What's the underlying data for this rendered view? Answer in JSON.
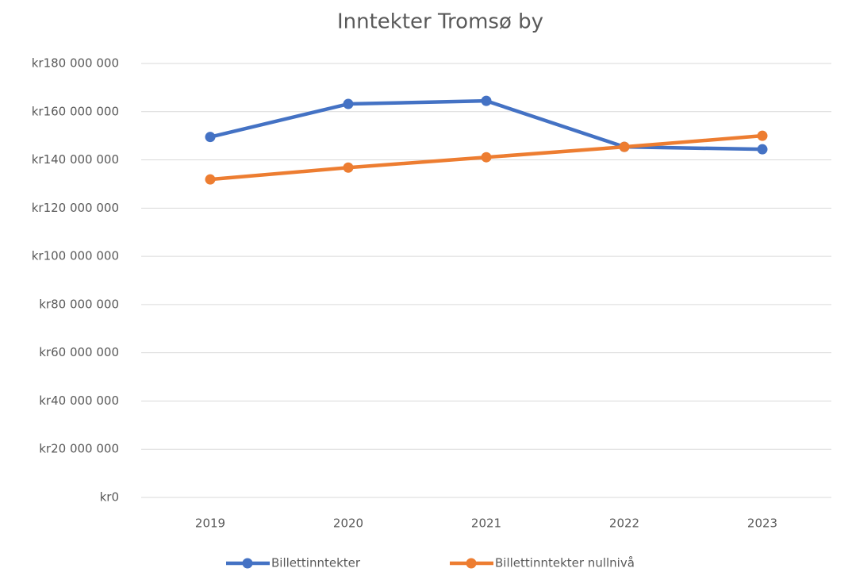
{
  "chart_data": {
    "type": "line",
    "title": "Inntekter Tromsø by",
    "categories": [
      "2019",
      "2020",
      "2021",
      "2022",
      "2023"
    ],
    "series": [
      {
        "name": "Billettinntekter",
        "color": "#4472c4",
        "values": [
          149500000,
          163200000,
          164500000,
          145400000,
          144400000
        ]
      },
      {
        "name": "Billettinntekter nullnivå",
        "color": "#ed7d31",
        "values": [
          131900000,
          136800000,
          141100000,
          145400000,
          150000000
        ]
      }
    ],
    "ylim": [
      0,
      180000000
    ],
    "yticks": [
      {
        "value": 0,
        "label": "kr0"
      },
      {
        "value": 20000000,
        "label": "kr20 000 000"
      },
      {
        "value": 40000000,
        "label": "kr40 000 000"
      },
      {
        "value": 60000000,
        "label": "kr60 000 000"
      },
      {
        "value": 80000000,
        "label": "kr80 000 000"
      },
      {
        "value": 100000000,
        "label": "kr100 000 000"
      },
      {
        "value": 120000000,
        "label": "kr120 000 000"
      },
      {
        "value": 140000000,
        "label": "kr140 000 000"
      },
      {
        "value": 160000000,
        "label": "kr160 000 000"
      },
      {
        "value": 180000000,
        "label": "kr180 000 000"
      }
    ],
    "grid": true,
    "legend": "bottom"
  }
}
